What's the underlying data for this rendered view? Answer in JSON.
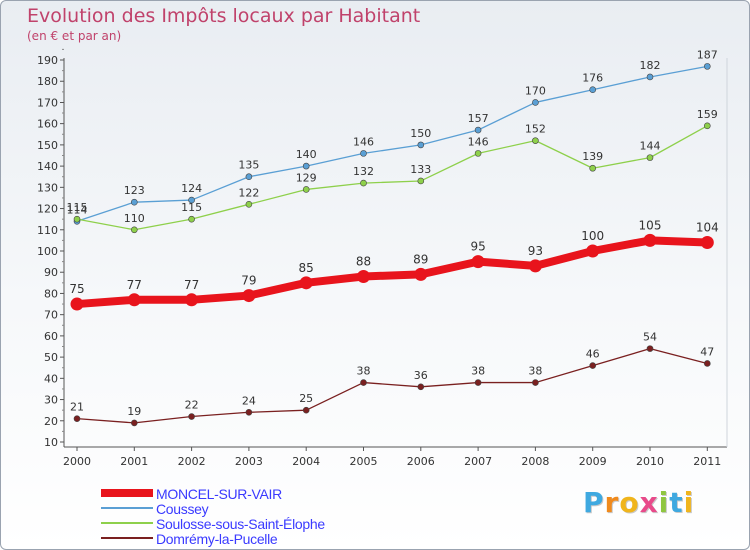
{
  "title": "Evolution des Impôts locaux par Habitant",
  "subtitle": "(en € et par an)",
  "logo": {
    "text": "Proxiti",
    "letter_colors": [
      "#3fa9e0",
      "#f08a1c",
      "#f0b51c",
      "#e84a8a",
      "#8fc640",
      "#3fa9e0",
      "#f0b51c"
    ]
  },
  "chart_data": {
    "type": "line",
    "x": [
      "2000",
      "2001",
      "2002",
      "2003",
      "2004",
      "2005",
      "2006",
      "2007",
      "2008",
      "2009",
      "2010",
      "2011"
    ],
    "y_ticks": [
      "10",
      "20",
      "30",
      "40",
      "50",
      "60",
      "70",
      "80",
      "90",
      "100",
      "110",
      "120",
      "130",
      "140",
      "150",
      "160",
      "170",
      "180",
      "190"
    ],
    "ylim": [
      10,
      190
    ],
    "grid": false,
    "legend_position": "bottom-left",
    "series": [
      {
        "name": "MONCEL-SUR-VAIR",
        "color": "#e8141c",
        "values": [
          75,
          77,
          77,
          79,
          85,
          88,
          89,
          95,
          93,
          100,
          105,
          104
        ],
        "labels": [
          "75",
          "77",
          "77",
          "79",
          "85",
          "88",
          "89",
          "95",
          "93",
          "100",
          "105",
          "104"
        ]
      },
      {
        "name": "Coussey",
        "color": "#5a9fd4",
        "values": [
          114,
          123,
          124,
          135,
          140,
          146,
          150,
          157,
          170,
          176,
          182,
          187
        ],
        "labels": [
          "114",
          "123",
          "124",
          "135",
          "140",
          "146",
          "150",
          "157",
          "170",
          "176",
          "182",
          "187"
        ]
      },
      {
        "name": "Soulosse-sous-Saint-Élophe",
        "color": "#8ed04b",
        "values": [
          115,
          110,
          115,
          122,
          129,
          132,
          133,
          146,
          152,
          139,
          144,
          159
        ],
        "labels": [
          "115",
          "110",
          "115",
          "122",
          "129",
          "132",
          "133",
          "146",
          "152",
          "139",
          "144",
          "159"
        ]
      },
      {
        "name": "Domrémy-la-Pucelle",
        "color": "#7a2020",
        "values": [
          21,
          19,
          22,
          24,
          25,
          38,
          36,
          38,
          38,
          46,
          54,
          47
        ],
        "labels": [
          "21",
          "19",
          "22",
          "24",
          "25",
          "38",
          "36",
          "38",
          "38",
          "46",
          "54",
          "47"
        ]
      }
    ]
  }
}
